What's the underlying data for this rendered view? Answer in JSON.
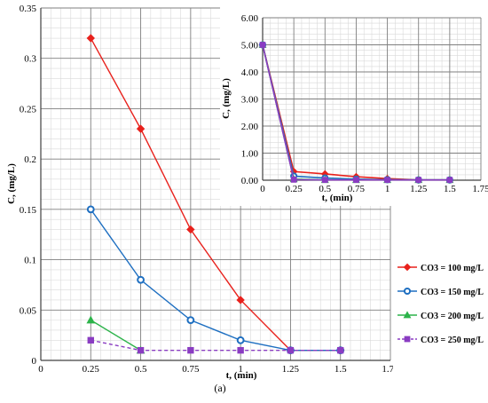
{
  "chart_data": [
    {
      "id": "main",
      "type": "line",
      "xlabel": "t, (min)",
      "ylabel": "C, (mg/L)",
      "xlim": [
        0,
        1.75
      ],
      "ylim": [
        0,
        0.35
      ],
      "xticks": [
        "0",
        "0.25",
        "0.5",
        "0.75",
        "1",
        "1.25",
        "1.5",
        "1.75"
      ],
      "yticks": [
        "0",
        "0.05",
        "0.1",
        "0.15",
        "0.2",
        "0.25",
        "0.3",
        "0.35"
      ],
      "grid": true,
      "legend": "right",
      "series": [
        {
          "name": "CO3 = 100 mg/L",
          "color": "#e8211c",
          "marker": "diamond",
          "dash": false,
          "x": [
            0.25,
            0.5,
            0.75,
            1,
            1.25,
            1.5
          ],
          "y": [
            0.32,
            0.23,
            0.13,
            0.06,
            0.01,
            0.01
          ]
        },
        {
          "name": "CO3 = 150 mg/L",
          "color": "#1e6fc1",
          "marker": "circle",
          "dash": false,
          "x": [
            0.25,
            0.5,
            0.75,
            1,
            1.25,
            1.5
          ],
          "y": [
            0.15,
            0.08,
            0.04,
            0.02,
            0.01,
            0.01
          ]
        },
        {
          "name": "CO3 = 200 mg/L",
          "color": "#2cb34a",
          "marker": "triangle",
          "dash": false,
          "x": [
            0.25,
            0.5
          ],
          "y": [
            0.04,
            0.01
          ]
        },
        {
          "name": "CO3 = 250 mg/L",
          "color": "#8a3cc2",
          "marker": "square",
          "dash": true,
          "x": [
            0.25,
            0.5,
            0.75,
            1,
            1.25,
            1.5
          ],
          "y": [
            0.02,
            0.01,
            0.01,
            0.01,
            0.01,
            0.01
          ]
        }
      ]
    },
    {
      "id": "inset",
      "type": "line",
      "xlabel": "t, (min)",
      "ylabel": "C, (mg/L)",
      "xlim": [
        0,
        1.75
      ],
      "ylim": [
        0,
        6
      ],
      "xticks": [
        "0",
        "0.25",
        "0.5",
        "0.75",
        "1",
        "1.25",
        "1.5",
        "1.75"
      ],
      "yticks": [
        "0.00",
        "1.00",
        "2.00",
        "3.00",
        "4.00",
        "5.00",
        "6.00"
      ],
      "grid": true,
      "series": [
        {
          "name": "CO3 = 100 mg/L",
          "color": "#e8211c",
          "marker": "diamond",
          "x": [
            0,
            0.25,
            0.5,
            0.75,
            1,
            1.25,
            1.5
          ],
          "y": [
            5,
            0.32,
            0.23,
            0.13,
            0.06,
            0.01,
            0.01
          ]
        },
        {
          "name": "CO3 = 150 mg/L",
          "color": "#1e6fc1",
          "marker": "circle",
          "x": [
            0,
            0.25,
            0.5,
            0.75,
            1,
            1.25,
            1.5
          ],
          "y": [
            5,
            0.15,
            0.08,
            0.04,
            0.02,
            0.01,
            0.01
          ]
        },
        {
          "name": "CO3 = 200 mg/L",
          "color": "#2cb34a",
          "marker": "triangle",
          "x": [
            0,
            0.25,
            0.5,
            0.75,
            1,
            1.25,
            1.5
          ],
          "y": [
            5,
            0.04,
            0.01,
            0.01,
            0.01,
            0.01,
            0.01
          ]
        },
        {
          "name": "CO3 = 250 mg/L",
          "color": "#8a3cc2",
          "marker": "square",
          "x": [
            0,
            0.25,
            0.5,
            0.75,
            1,
            1.25,
            1.5
          ],
          "y": [
            5,
            0.02,
            0.01,
            0.01,
            0.01,
            0.01,
            0.01
          ]
        }
      ]
    }
  ],
  "caption": "(a)"
}
